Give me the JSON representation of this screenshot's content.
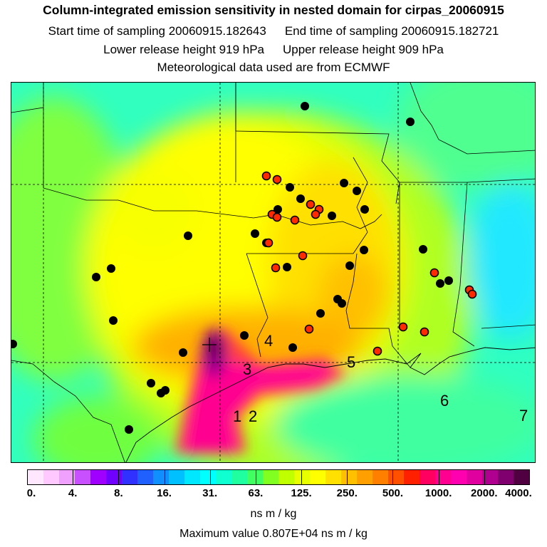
{
  "header": {
    "title": "Column-integrated emission sensitivity in nested domain for cirpas_20060915",
    "start_time": "Start time of sampling 20060915.182643",
    "end_time": "End time of sampling 20060915.182721",
    "lower_release": "Lower release height  919 hPa",
    "upper_release": "Upper release height  909 hPa",
    "met_data": "Meteorological data used are from ECMWF"
  },
  "map": {
    "site_labels": [
      "1",
      "2",
      "3",
      "4",
      "5",
      "6",
      "7"
    ],
    "release_marker": "cross-icon",
    "colors": {
      "background_low": "#33ffcc",
      "mid": "#ffff00",
      "high": "#ff00aa",
      "peak": "#660066",
      "black_dot": "#000000",
      "red_dot": "#ff2200"
    }
  },
  "colorbar": {
    "colors": [
      "#ffe8ff",
      "#ffc8ff",
      "#f0a0ff",
      "#c850ff",
      "#a000ff",
      "#7000ff",
      "#3030ff",
      "#2060ff",
      "#1090ff",
      "#00c0ff",
      "#00e8ff",
      "#00ffff",
      "#10ffd0",
      "#20ffa0",
      "#40ff60",
      "#80ff20",
      "#c0ff00",
      "#e8ff00",
      "#ffff00",
      "#ffe000",
      "#ffc000",
      "#ffa000",
      "#ff8000",
      "#ff5000",
      "#ff2000",
      "#ff0060",
      "#ff0090",
      "#ff00b0",
      "#e000a0",
      "#b00090",
      "#800070",
      "#500040"
    ],
    "labels": [
      "0.",
      "4.",
      "8.",
      "16.",
      "31.",
      "63.",
      "125.",
      "250.",
      "500.",
      "1000.",
      "2000.",
      "4000."
    ],
    "units": "ns m / kg"
  },
  "footer": {
    "max_value": "Maximum value  0.807E+04 ns m / kg"
  }
}
